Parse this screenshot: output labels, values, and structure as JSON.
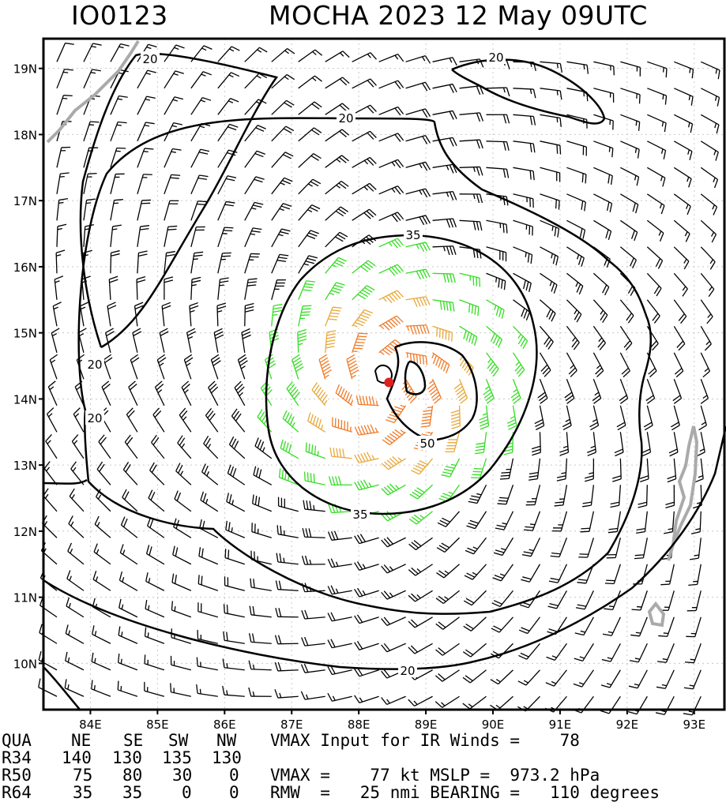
{
  "header": {
    "storm_id": "IO0123",
    "storm_info": "MOCHA 2023 12 May 09UTC"
  },
  "map": {
    "lon_labels": [
      "84E",
      "85E",
      "86E",
      "87E",
      "88E",
      "89E",
      "90E",
      "91E",
      "92E",
      "93E"
    ],
    "lat_labels": [
      "19N",
      "18N",
      "17N",
      "16N",
      "15N",
      "14N",
      "13N",
      "12N",
      "11N",
      "10N"
    ],
    "lon_range": [
      83.3,
      93.45
    ],
    "lat_range": [
      9.3,
      19.45
    ],
    "storm_center": {
      "lon": 88.45,
      "lat": 14.25
    },
    "contour_labels": [
      "20",
      "20",
      "20",
      "20",
      "20",
      "20",
      "35",
      "35",
      "50"
    ],
    "wind_colors": {
      "below_34kt": "#000000",
      "34_to_50kt": "#33dd22",
      "50_to_64kt": "#e8a83a",
      "64_to_100kt": "#f07a28",
      "above_100kt": "#e02020",
      "center": "#e02020",
      "coast": "#aaaaaa"
    }
  },
  "table": {
    "headers": [
      "QUA",
      "NE",
      "SE",
      "SW",
      "NW"
    ],
    "rows": [
      {
        "label": "R34",
        "values": [
          "140",
          "130",
          "135",
          "130"
        ]
      },
      {
        "label": "R50",
        "values": [
          "75",
          "80",
          "30",
          "0"
        ]
      },
      {
        "label": "R64",
        "values": [
          "35",
          "35",
          "0",
          "0"
        ]
      }
    ]
  },
  "info": {
    "vmax_input": "VMAX Input for IR Winds =    78",
    "vmax_mslp": "VMAX =    77 kt MSLP =  973.2 hPa",
    "rmw_bearing": "RMW  =   25 nmi BEARING =   110 degrees"
  }
}
